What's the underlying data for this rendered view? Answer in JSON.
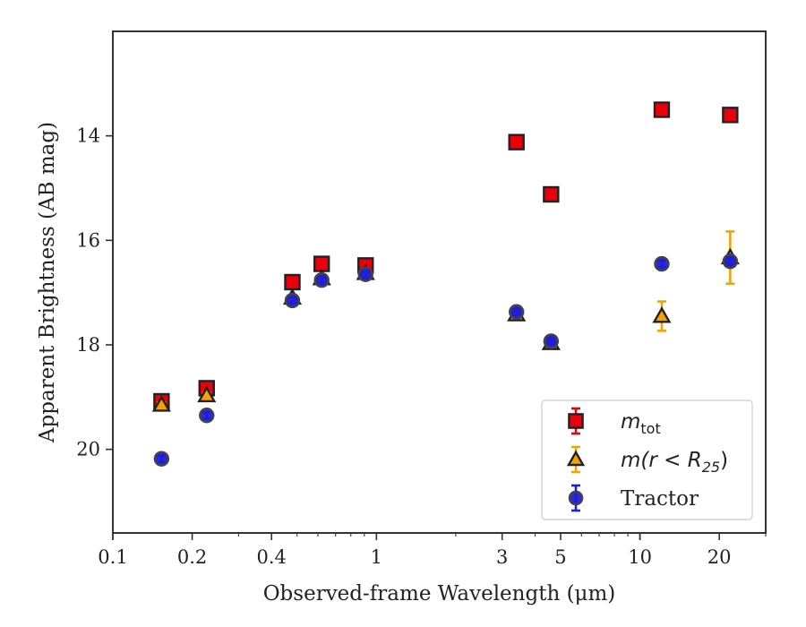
{
  "chart_data": {
    "type": "scatter",
    "xlabel": "Observed-frame Wavelength (μm)",
    "ylabel": "Apparent Brightness (AB mag)",
    "xscale": "log",
    "xlim": [
      0.1,
      30
    ],
    "ylim": [
      21.6,
      12.0
    ],
    "y_inverted": true,
    "xticks": [
      {
        "value": 0.1,
        "label": "0.1"
      },
      {
        "value": 0.2,
        "label": "0.2"
      },
      {
        "value": 0.4,
        "label": "0.4"
      },
      {
        "value": 1,
        "label": "1"
      },
      {
        "value": 3,
        "label": "3"
      },
      {
        "value": 5,
        "label": "5"
      },
      {
        "value": 10,
        "label": "10"
      },
      {
        "value": 20,
        "label": "20"
      }
    ],
    "yticks": [
      {
        "value": 14,
        "label": "14"
      },
      {
        "value": 16,
        "label": "16"
      },
      {
        "value": 18,
        "label": "18"
      },
      {
        "value": 20,
        "label": "20"
      }
    ],
    "legend_position": "lower-right",
    "series": [
      {
        "name": "m_tot",
        "legend_main": "m",
        "legend_sub": "tot",
        "marker": "square",
        "color": "#e8000b",
        "errcolor": "#e8000b",
        "points": [
          {
            "x": 0.153,
            "y": 19.08,
            "err": 0.08
          },
          {
            "x": 0.227,
            "y": 18.83,
            "err": 0.08
          },
          {
            "x": 0.48,
            "y": 16.8,
            "err": 0.05
          },
          {
            "x": 0.62,
            "y": 16.45,
            "err": 0.05
          },
          {
            "x": 0.91,
            "y": 16.48,
            "err": 0.05
          },
          {
            "x": 3.4,
            "y": 14.12,
            "err": 0.04
          },
          {
            "x": 4.6,
            "y": 15.12,
            "err": 0.04
          },
          {
            "x": 12.1,
            "y": 13.5,
            "err": 0.04
          },
          {
            "x": 22.0,
            "y": 13.6,
            "err": 0.05
          }
        ]
      },
      {
        "name": "m(r < R25)",
        "legend_main": "m(r < R",
        "legend_sub": "25",
        "legend_tail": ")",
        "marker": "triangle",
        "color": "#f5a300",
        "errcolor": "#f5a300",
        "points": [
          {
            "x": 0.153,
            "y": 19.15,
            "err": 0.05
          },
          {
            "x": 0.227,
            "y": 18.97,
            "err": 0.05
          },
          {
            "x": 0.48,
            "y": 17.1,
            "err": 0.05
          },
          {
            "x": 0.62,
            "y": 16.73,
            "err": 0.05
          },
          {
            "x": 0.91,
            "y": 16.63,
            "err": 0.05
          },
          {
            "x": 3.4,
            "y": 17.42,
            "err": 0.05
          },
          {
            "x": 4.6,
            "y": 17.97,
            "err": 0.05
          },
          {
            "x": 12.1,
            "y": 17.45,
            "err": 0.28
          },
          {
            "x": 22.0,
            "y": 16.33,
            "err": 0.5
          }
        ]
      },
      {
        "name": "Tractor",
        "legend_main": "Tractor",
        "marker": "circle",
        "color": "#1f1fd6",
        "errcolor": "#1f1fd6",
        "points": [
          {
            "x": 0.153,
            "y": 20.18,
            "err": 0.06
          },
          {
            "x": 0.227,
            "y": 19.35,
            "err": 0.06
          },
          {
            "x": 0.48,
            "y": 17.15,
            "err": 0.05
          },
          {
            "x": 0.62,
            "y": 16.76,
            "err": 0.05
          },
          {
            "x": 0.91,
            "y": 16.65,
            "err": 0.05
          },
          {
            "x": 3.4,
            "y": 17.37,
            "err": 0.06
          },
          {
            "x": 4.6,
            "y": 17.93,
            "err": 0.06
          },
          {
            "x": 12.1,
            "y": 16.45,
            "err": 0.06
          },
          {
            "x": 22.0,
            "y": 16.4,
            "err": 0.07
          }
        ]
      }
    ]
  }
}
